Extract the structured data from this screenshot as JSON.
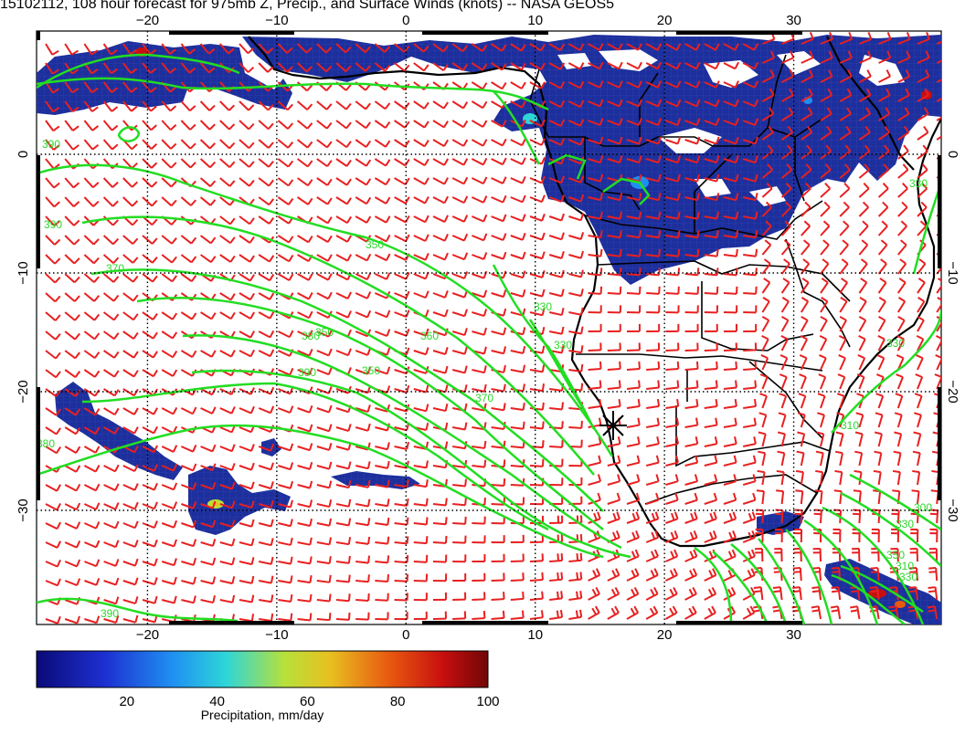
{
  "title": "15102112, 108 hour forecast for 975mb Z, Precip., and Surface Winds (knots) -- NASA GEOS5",
  "map": {
    "lon_ticks": [
      -20,
      -10,
      0,
      10,
      20,
      30
    ],
    "lat_ticks": [
      0,
      -10,
      -20,
      -30
    ],
    "lon_range": [
      -30,
      40
    ],
    "lat_range": [
      -40,
      10
    ],
    "contour_labels": [
      "390",
      "350",
      "370",
      "380",
      "360",
      "390",
      "370",
      "330",
      "380",
      "390",
      "350",
      "330",
      "330",
      "350",
      "310",
      "330",
      "300",
      "330",
      "310",
      "330",
      "390",
      "350"
    ],
    "marker_label": "*",
    "colors": {
      "contour": "#22dd22",
      "wind_barb": "#e82020",
      "coast": "#000000",
      "precip_low": "#1e2f9a"
    }
  },
  "colorbar": {
    "ticks": [
      "20",
      "40",
      "60",
      "80",
      "100"
    ],
    "label": "Precipitation, mm/day",
    "range": [
      0,
      100
    ]
  }
}
